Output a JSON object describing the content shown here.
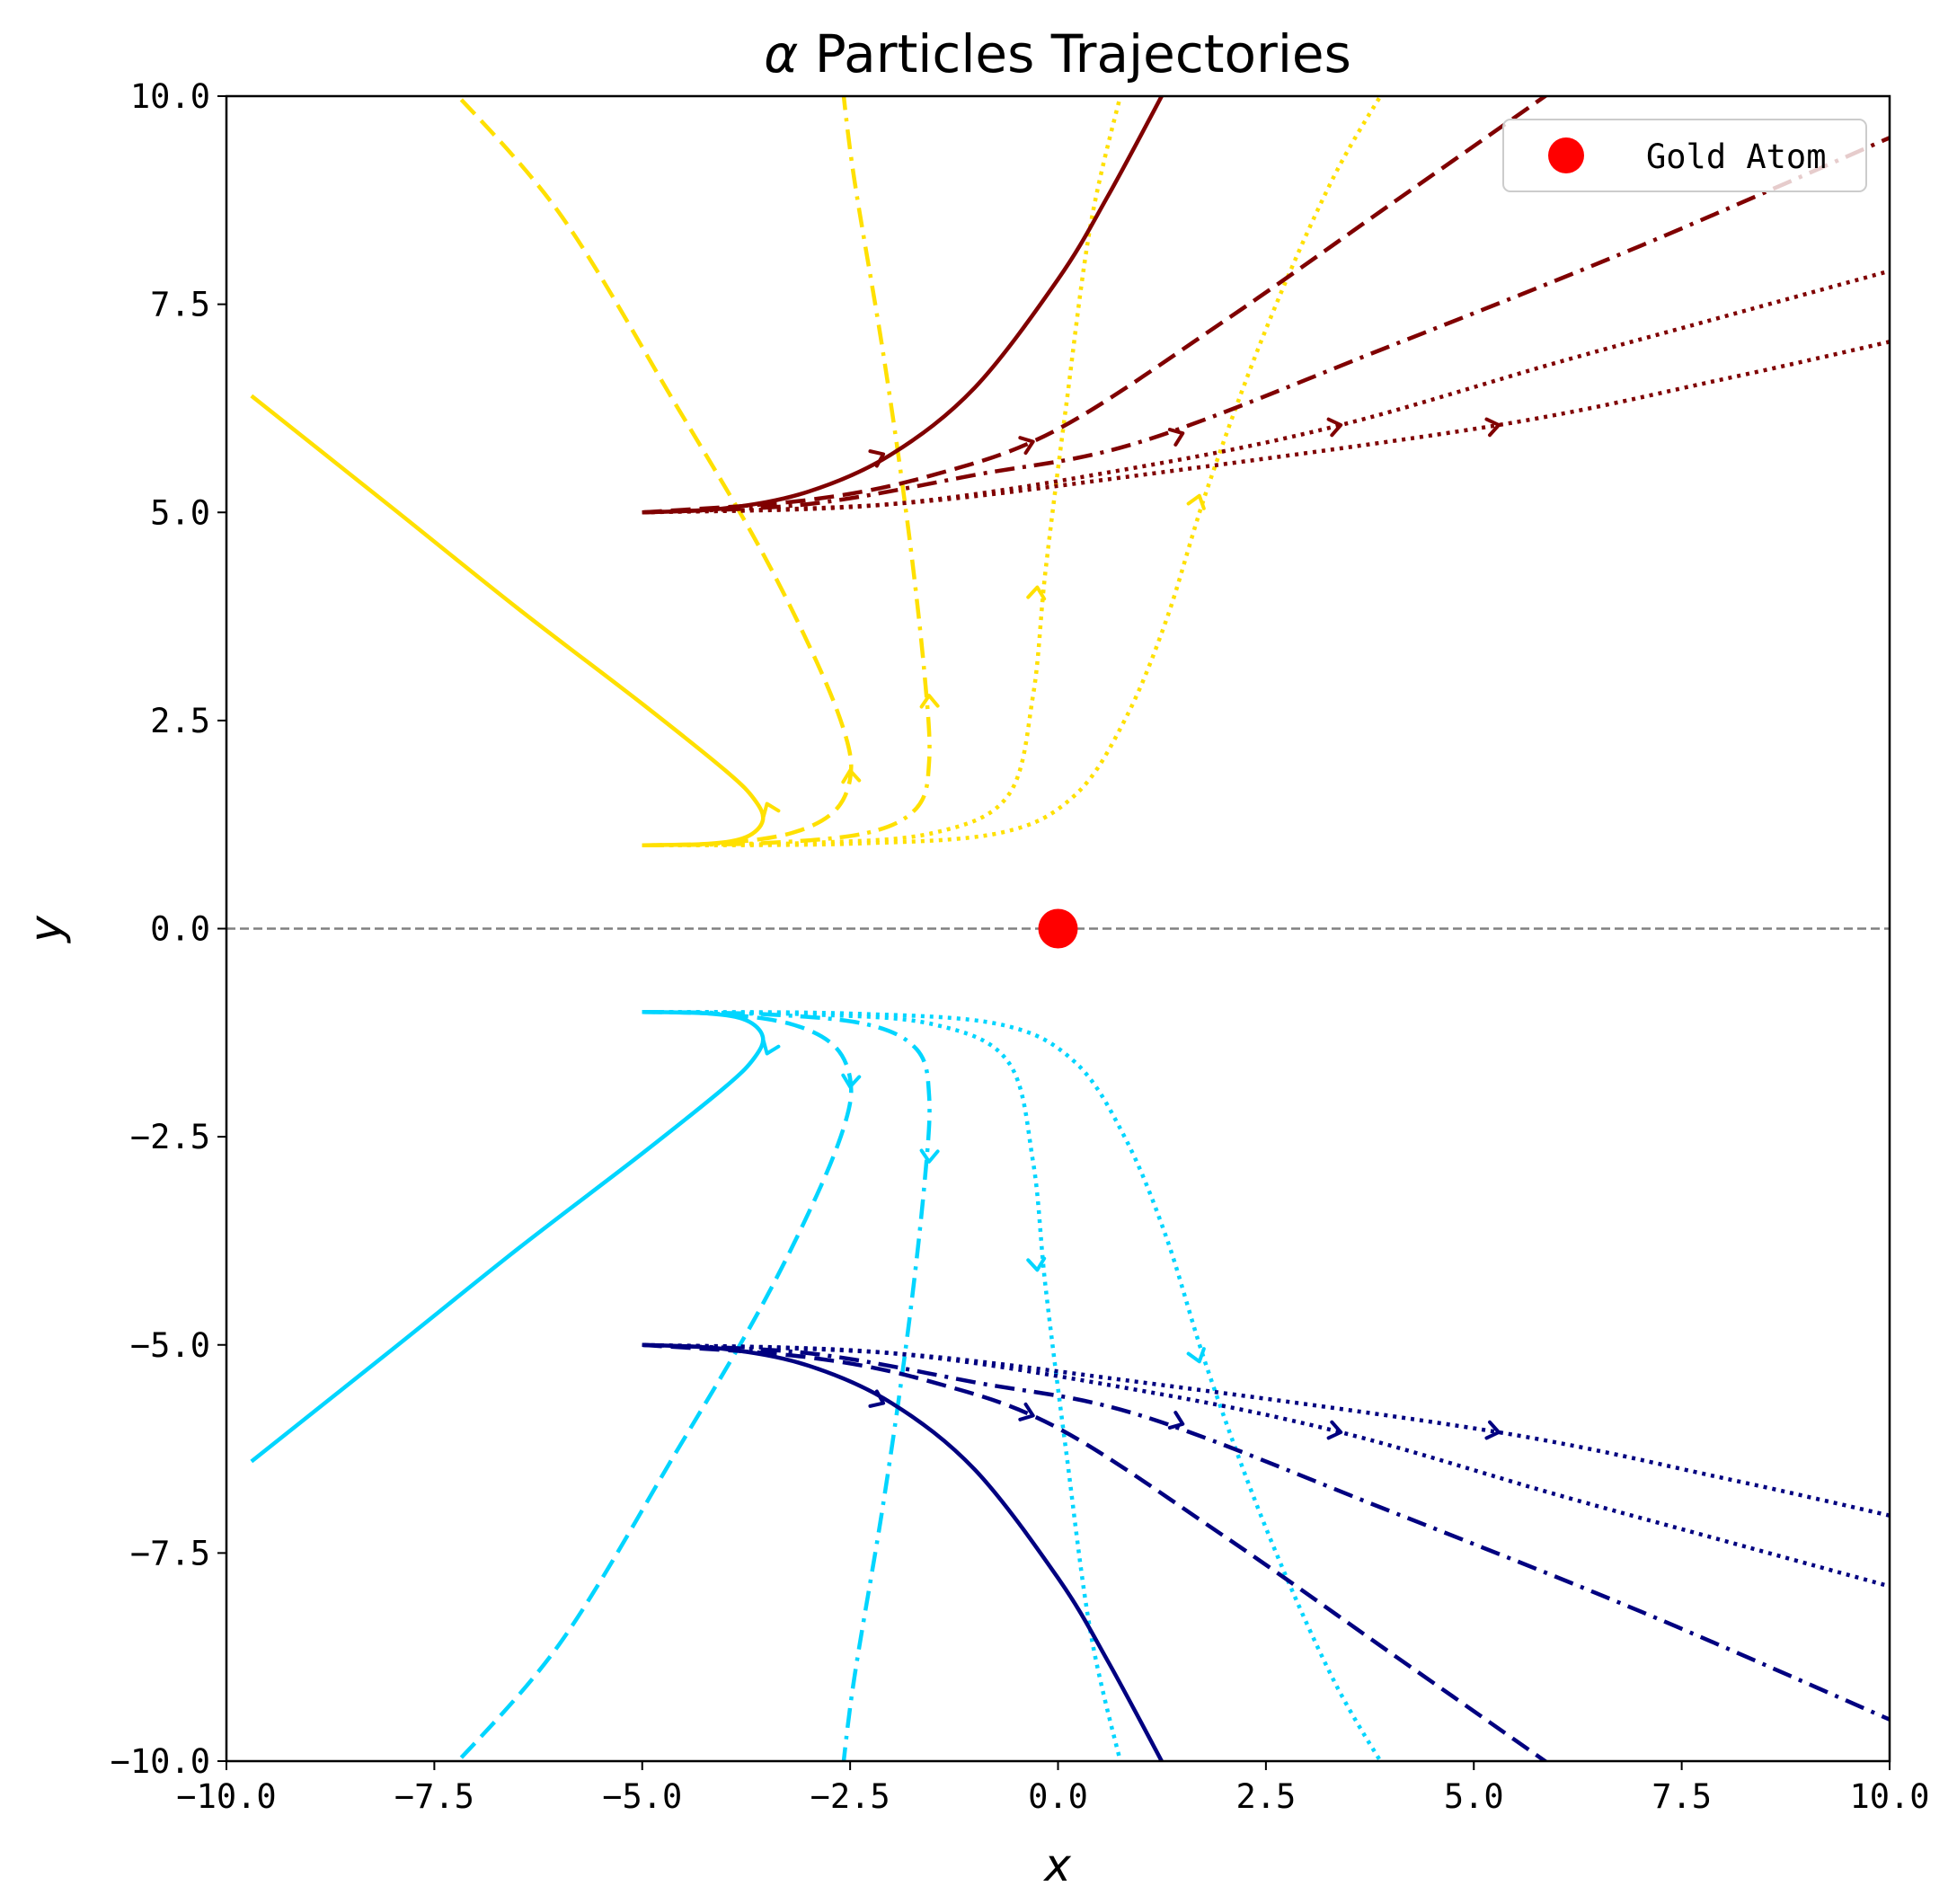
{
  "chart_data": {
    "type": "line",
    "title": "α Particles Trajectories",
    "title_prefix": "α",
    "title_rest": " Particles Trajectories",
    "xlabel": "x",
    "ylabel": "y",
    "xlim": [
      -10,
      10
    ],
    "ylim": [
      -10,
      10
    ],
    "xticks": [
      -10,
      -7.5,
      -5,
      -2.5,
      0,
      2.5,
      5,
      7.5,
      10
    ],
    "yticks": [
      -10,
      -7.5,
      -5,
      -2.5,
      0,
      2.5,
      5,
      7.5,
      10
    ],
    "xtick_labels": [
      "−10.0",
      "−7.5",
      "−5.0",
      "−2.5",
      "0.0",
      "2.5",
      "5.0",
      "7.5",
      "10.0"
    ],
    "ytick_labels": [
      "−10.0",
      "−7.5",
      "−5.0",
      "−2.5",
      "0.0",
      "2.5",
      "5.0",
      "7.5",
      "10.0"
    ],
    "grid": false,
    "legend_position": "top-right",
    "legend": {
      "label": "Gold Atom",
      "marker_color": "#ff0000"
    },
    "gold_atom": {
      "x": 0,
      "y": 0,
      "color": "#ff0000"
    },
    "reference_line": {
      "y": 0,
      "color": "#808080",
      "style": "dashed"
    },
    "series": [
      {
        "color": "#ffe000",
        "dash": "solid",
        "points": [
          [
            -5,
            1
          ],
          [
            -4.2,
            1.02
          ],
          [
            -3.75,
            1.1
          ],
          [
            -3.55,
            1.3
          ],
          [
            -3.65,
            1.55
          ],
          [
            -4,
            1.9
          ],
          [
            -5,
            2.7
          ],
          [
            -6.5,
            3.85
          ],
          [
            -8,
            5.05
          ],
          [
            -9.7,
            6.4
          ]
        ],
        "arrow": [
          -3.5,
          1.5
        ]
      },
      {
        "color": "#ffe000",
        "dash": "dashed",
        "points": [
          [
            -5,
            1
          ],
          [
            -4,
            1.03
          ],
          [
            -3.2,
            1.15
          ],
          [
            -2.7,
            1.4
          ],
          [
            -2.5,
            1.8
          ],
          [
            -2.55,
            2.3
          ],
          [
            -2.9,
            3.2
          ],
          [
            -3.6,
            4.6
          ],
          [
            -4.6,
            6.3
          ],
          [
            -6,
            8.6
          ],
          [
            -7.4,
            10.2
          ]
        ],
        "arrow": [
          -2.5,
          1.9
        ]
      },
      {
        "color": "#ffe000",
        "dash": "dashdot",
        "points": [
          [
            -5,
            1
          ],
          [
            -3.5,
            1.03
          ],
          [
            -2.3,
            1.15
          ],
          [
            -1.7,
            1.45
          ],
          [
            -1.55,
            2
          ],
          [
            -1.6,
            3
          ],
          [
            -1.8,
            4.8
          ],
          [
            -2.1,
            6.9
          ],
          [
            -2.45,
            9
          ],
          [
            -2.6,
            10.2
          ]
        ],
        "arrow": [
          -1.55,
          2.8
        ]
      },
      {
        "color": "#ffe000",
        "dash": "dotted",
        "points": [
          [
            -5,
            1
          ],
          [
            -3,
            1.03
          ],
          [
            -1.5,
            1.15
          ],
          [
            -0.6,
            1.6
          ],
          [
            -0.3,
            2.8
          ],
          [
            -0.15,
            4.3
          ],
          [
            0.1,
            6.3
          ],
          [
            0.4,
            8.5
          ],
          [
            0.8,
            10.2
          ]
        ],
        "arrow": [
          -0.25,
          4.1
        ]
      },
      {
        "color": "#ffe000",
        "dash": "dotted",
        "points": [
          [
            -5,
            1
          ],
          [
            -2.5,
            1.02
          ],
          [
            -0.7,
            1.15
          ],
          [
            0.2,
            1.6
          ],
          [
            0.8,
            2.5
          ],
          [
            1.3,
            3.7
          ],
          [
            1.8,
            5.3
          ],
          [
            2.5,
            7.2
          ],
          [
            3.3,
            9
          ],
          [
            4,
            10.2
          ]
        ],
        "arrow": [
          1.7,
          5.2
        ]
      },
      {
        "color": "#800000",
        "dash": "solid",
        "points": [
          [
            -5,
            5
          ],
          [
            -4,
            5.05
          ],
          [
            -3,
            5.25
          ],
          [
            -2,
            5.7
          ],
          [
            -1,
            6.5
          ],
          [
            0,
            7.8
          ],
          [
            0.6,
            8.8
          ],
          [
            1.3,
            10.1
          ]
        ],
        "arrow": [
          -2.1,
          5.7
        ]
      },
      {
        "color": "#800000",
        "dash": "dashed",
        "points": [
          [
            -5,
            5
          ],
          [
            -3,
            5.15
          ],
          [
            -1.5,
            5.45
          ],
          [
            0,
            6
          ],
          [
            2,
            7.3
          ],
          [
            4,
            8.7
          ],
          [
            6,
            10.1
          ]
        ],
        "arrow": [
          -0.3,
          5.85
        ]
      },
      {
        "color": "#800000",
        "dash": "dashdot",
        "points": [
          [
            -5,
            5
          ],
          [
            -3,
            5.1
          ],
          [
            -1,
            5.45
          ],
          [
            1,
            5.85
          ],
          [
            4,
            7
          ],
          [
            7,
            8.2
          ],
          [
            10,
            9.5
          ]
        ],
        "arrow": [
          1.5,
          5.95
        ]
      },
      {
        "color": "#800000",
        "dash": "dotted",
        "points": [
          [
            -5,
            5
          ],
          [
            -2,
            5.1
          ],
          [
            1,
            5.55
          ],
          [
            3.4,
            6.05
          ],
          [
            6,
            6.8
          ],
          [
            8,
            7.35
          ],
          [
            10,
            7.9
          ]
        ],
        "arrow": [
          3.4,
          6.05
        ]
      },
      {
        "color": "#800000",
        "dash": "dotted",
        "points": [
          [
            -5,
            5
          ],
          [
            -2,
            5.1
          ],
          [
            1,
            5.45
          ],
          [
            5.3,
            6.05
          ],
          [
            8,
            6.6
          ],
          [
            10,
            7.05
          ]
        ],
        "arrow": [
          5.3,
          6.05
        ]
      },
      {
        "color": "#00d5ff",
        "dash": "solid",
        "points": [
          [
            -5,
            -1
          ],
          [
            -4.2,
            -1.02
          ],
          [
            -3.75,
            -1.1
          ],
          [
            -3.55,
            -1.3
          ],
          [
            -3.65,
            -1.55
          ],
          [
            -4,
            -1.9
          ],
          [
            -5,
            -2.7
          ],
          [
            -6.5,
            -3.85
          ],
          [
            -8,
            -5.05
          ],
          [
            -9.7,
            -6.4
          ]
        ],
        "arrow": [
          -3.5,
          -1.5
        ]
      },
      {
        "color": "#00d5ff",
        "dash": "dashed",
        "points": [
          [
            -5,
            -1
          ],
          [
            -4,
            -1.03
          ],
          [
            -3.2,
            -1.15
          ],
          [
            -2.7,
            -1.4
          ],
          [
            -2.5,
            -1.8
          ],
          [
            -2.55,
            -2.3
          ],
          [
            -2.9,
            -3.2
          ],
          [
            -3.6,
            -4.6
          ],
          [
            -4.6,
            -6.3
          ],
          [
            -6,
            -8.6
          ],
          [
            -7.4,
            -10.2
          ]
        ],
        "arrow": [
          -2.5,
          -1.9
        ]
      },
      {
        "color": "#00d5ff",
        "dash": "dashdot",
        "points": [
          [
            -5,
            -1
          ],
          [
            -3.5,
            -1.03
          ],
          [
            -2.3,
            -1.15
          ],
          [
            -1.7,
            -1.45
          ],
          [
            -1.55,
            -2
          ],
          [
            -1.6,
            -3
          ],
          [
            -1.8,
            -4.8
          ],
          [
            -2.1,
            -6.9
          ],
          [
            -2.45,
            -9
          ],
          [
            -2.6,
            -10.2
          ]
        ],
        "arrow": [
          -1.55,
          -2.8
        ]
      },
      {
        "color": "#00d5ff",
        "dash": "dotted",
        "points": [
          [
            -5,
            -1
          ],
          [
            -3,
            -1.03
          ],
          [
            -1.5,
            -1.15
          ],
          [
            -0.6,
            -1.6
          ],
          [
            -0.3,
            -2.8
          ],
          [
            -0.15,
            -4.3
          ],
          [
            0.1,
            -6.3
          ],
          [
            0.4,
            -8.5
          ],
          [
            0.8,
            -10.2
          ]
        ],
        "arrow": [
          -0.25,
          -4.1
        ]
      },
      {
        "color": "#00d5ff",
        "dash": "dotted",
        "points": [
          [
            -5,
            -1
          ],
          [
            -2.5,
            -1.02
          ],
          [
            -0.7,
            -1.15
          ],
          [
            0.2,
            -1.6
          ],
          [
            0.8,
            -2.5
          ],
          [
            1.3,
            -3.7
          ],
          [
            1.8,
            -5.3
          ],
          [
            2.5,
            -7.2
          ],
          [
            3.3,
            -9
          ],
          [
            4,
            -10.2
          ]
        ],
        "arrow": [
          1.7,
          -5.2
        ]
      },
      {
        "color": "#000080",
        "dash": "solid",
        "points": [
          [
            -5,
            -5
          ],
          [
            -4,
            -5.05
          ],
          [
            -3,
            -5.25
          ],
          [
            -2,
            -5.7
          ],
          [
            -1,
            -6.5
          ],
          [
            0,
            -7.8
          ],
          [
            0.6,
            -8.8
          ],
          [
            1.3,
            -10.1
          ]
        ],
        "arrow": [
          -2.1,
          -5.7
        ]
      },
      {
        "color": "#000080",
        "dash": "dashed",
        "points": [
          [
            -5,
            -5
          ],
          [
            -3,
            -5.15
          ],
          [
            -1.5,
            -5.45
          ],
          [
            0,
            -6
          ],
          [
            2,
            -7.3
          ],
          [
            4,
            -8.7
          ],
          [
            6,
            -10.1
          ]
        ],
        "arrow": [
          -0.3,
          -5.85
        ]
      },
      {
        "color": "#000080",
        "dash": "dashdot",
        "points": [
          [
            -5,
            -5
          ],
          [
            -3,
            -5.1
          ],
          [
            -1,
            -5.45
          ],
          [
            1,
            -5.85
          ],
          [
            4,
            -7
          ],
          [
            7,
            -8.2
          ],
          [
            10,
            -9.5
          ]
        ],
        "arrow": [
          1.5,
          -5.95
        ]
      },
      {
        "color": "#000080",
        "dash": "dotted",
        "points": [
          [
            -5,
            -5
          ],
          [
            -2,
            -5.1
          ],
          [
            1,
            -5.55
          ],
          [
            3.4,
            -6.05
          ],
          [
            6,
            -6.8
          ],
          [
            8,
            -7.35
          ],
          [
            10,
            -7.9
          ]
        ],
        "arrow": [
          3.4,
          -6.05
        ]
      },
      {
        "color": "#000080",
        "dash": "dotted",
        "points": [
          [
            -5,
            -5
          ],
          [
            -2,
            -5.1
          ],
          [
            1,
            -5.45
          ],
          [
            5.3,
            -6.05
          ],
          [
            8,
            -6.6
          ],
          [
            10,
            -7.05
          ]
        ],
        "arrow": [
          5.3,
          -6.05
        ]
      }
    ]
  }
}
